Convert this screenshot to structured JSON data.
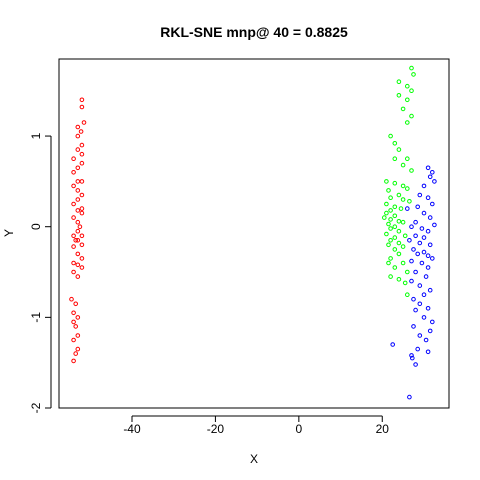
{
  "chart_data": {
    "type": "scatter",
    "title": "RKL-SNE mnp@ 40 = 0.8825",
    "xlabel": "X",
    "ylabel": "Y",
    "xlim": [
      -57.5,
      36
    ],
    "ylim": [
      -2.0,
      1.85
    ],
    "x_ticks": [
      -40,
      -20,
      0,
      20
    ],
    "x_tick_labels": [
      "-40",
      "-20",
      "0",
      "20"
    ],
    "y_ticks": [
      -2,
      -1,
      0,
      1
    ],
    "y_tick_labels": [
      "-2",
      "-1",
      "0",
      "1"
    ],
    "grid": false,
    "legend": "none",
    "marker": "open-circle",
    "series": [
      {
        "color": "#ff0000",
        "points": [
          [
            -52.0,
            1.4
          ],
          [
            -52.0,
            1.32
          ],
          [
            -51.5,
            1.15
          ],
          [
            -52.2,
            1.05
          ],
          [
            -53.0,
            1.1
          ],
          [
            -53.0,
            1.0
          ],
          [
            -52.0,
            0.9
          ],
          [
            -53.0,
            0.85
          ],
          [
            -52.0,
            0.8
          ],
          [
            -54.0,
            0.75
          ],
          [
            -52.0,
            0.7
          ],
          [
            -53.0,
            0.65
          ],
          [
            -54.0,
            0.6
          ],
          [
            -52.0,
            0.5
          ],
          [
            -53.0,
            0.5
          ],
          [
            -54.0,
            0.45
          ],
          [
            -53.0,
            0.4
          ],
          [
            -52.0,
            0.35
          ],
          [
            -53.0,
            0.3
          ],
          [
            -54.0,
            0.25
          ],
          [
            -52.0,
            0.2
          ],
          [
            -53.0,
            0.18
          ],
          [
            -52.0,
            0.15
          ],
          [
            -54.0,
            0.1
          ],
          [
            -53.0,
            0.05
          ],
          [
            -52.5,
            0.0
          ],
          [
            -53.0,
            -0.05
          ],
          [
            -54.0,
            -0.1
          ],
          [
            -52.0,
            -0.1
          ],
          [
            -53.5,
            -0.15
          ],
          [
            -53.0,
            -0.15
          ],
          [
            -52.0,
            -0.2
          ],
          [
            -54.0,
            -0.22
          ],
          [
            -53.0,
            -0.3
          ],
          [
            -52.0,
            -0.35
          ],
          [
            -54.0,
            -0.4
          ],
          [
            -53.0,
            -0.42
          ],
          [
            -52.0,
            -0.45
          ],
          [
            -54.0,
            -0.5
          ],
          [
            -53.0,
            -0.55
          ],
          [
            -54.5,
            -0.8
          ],
          [
            -53.5,
            -0.85
          ],
          [
            -54.0,
            -0.95
          ],
          [
            -53.0,
            -1.0
          ],
          [
            -54.0,
            -1.05
          ],
          [
            -53.5,
            -1.1
          ],
          [
            -53.0,
            -1.2
          ],
          [
            -54.0,
            -1.25
          ],
          [
            -53.0,
            -1.35
          ],
          [
            -53.5,
            -1.4
          ],
          [
            -54.0,
            -1.48
          ]
        ]
      },
      {
        "color": "#00ff00",
        "points": [
          [
            27.0,
            1.75
          ],
          [
            27.5,
            1.68
          ],
          [
            24.0,
            1.6
          ],
          [
            26.0,
            1.55
          ],
          [
            27.0,
            1.5
          ],
          [
            24.0,
            1.45
          ],
          [
            26.0,
            1.4
          ],
          [
            25.0,
            1.3
          ],
          [
            27.0,
            1.22
          ],
          [
            26.0,
            1.15
          ],
          [
            22.0,
            1.0
          ],
          [
            23.0,
            0.92
          ],
          [
            24.0,
            0.85
          ],
          [
            23.0,
            0.75
          ],
          [
            26.0,
            0.75
          ],
          [
            25.0,
            0.68
          ],
          [
            27.0,
            0.62
          ],
          [
            21.0,
            0.5
          ],
          [
            23.0,
            0.48
          ],
          [
            25.0,
            0.45
          ],
          [
            26.0,
            0.42
          ],
          [
            21.5,
            0.4
          ],
          [
            24.0,
            0.35
          ],
          [
            22.0,
            0.32
          ],
          [
            25.0,
            0.3
          ],
          [
            26.5,
            0.28
          ],
          [
            21.0,
            0.25
          ],
          [
            23.0,
            0.22
          ],
          [
            24.5,
            0.2
          ],
          [
            22.0,
            0.18
          ],
          [
            21.0,
            0.15
          ],
          [
            23.0,
            0.12
          ],
          [
            20.5,
            0.1
          ],
          [
            22.0,
            0.08
          ],
          [
            24.0,
            0.06
          ],
          [
            25.0,
            0.05
          ],
          [
            21.5,
            0.03
          ],
          [
            23.0,
            0.0
          ],
          [
            22.0,
            -0.02
          ],
          [
            24.0,
            -0.05
          ],
          [
            21.0,
            -0.08
          ],
          [
            25.5,
            -0.1
          ],
          [
            23.0,
            -0.12
          ],
          [
            22.0,
            -0.15
          ],
          [
            24.0,
            -0.18
          ],
          [
            21.5,
            -0.2
          ],
          [
            25.0,
            -0.22
          ],
          [
            23.0,
            -0.25
          ],
          [
            24.0,
            -0.3
          ],
          [
            22.0,
            -0.35
          ],
          [
            21.5,
            -0.4
          ],
          [
            25.0,
            -0.4
          ],
          [
            23.0,
            -0.45
          ],
          [
            26.0,
            -0.5
          ],
          [
            22.0,
            -0.55
          ],
          [
            24.0,
            -0.58
          ],
          [
            25.5,
            -0.62
          ],
          [
            26.0,
            -0.75
          ]
        ]
      },
      {
        "color": "#0000ff",
        "points": [
          [
            31.0,
            0.65
          ],
          [
            32.0,
            0.6
          ],
          [
            31.5,
            0.55
          ],
          [
            32.5,
            0.5
          ],
          [
            30.0,
            0.45
          ],
          [
            29.0,
            0.35
          ],
          [
            31.0,
            0.32
          ],
          [
            32.0,
            0.25
          ],
          [
            28.5,
            0.22
          ],
          [
            26.0,
            0.2
          ],
          [
            30.0,
            0.15
          ],
          [
            31.5,
            0.1
          ],
          [
            28.0,
            0.05
          ],
          [
            32.5,
            0.02
          ],
          [
            27.0,
            0.0
          ],
          [
            29.5,
            -0.02
          ],
          [
            31.0,
            -0.05
          ],
          [
            28.0,
            -0.1
          ],
          [
            30.0,
            -0.12
          ],
          [
            26.5,
            -0.15
          ],
          [
            29.0,
            -0.18
          ],
          [
            31.5,
            -0.2
          ],
          [
            27.5,
            -0.25
          ],
          [
            30.0,
            -0.28
          ],
          [
            28.5,
            -0.3
          ],
          [
            31.0,
            -0.32
          ],
          [
            32.0,
            -0.35
          ],
          [
            27.0,
            -0.38
          ],
          [
            29.5,
            -0.4
          ],
          [
            31.0,
            -0.45
          ],
          [
            28.0,
            -0.5
          ],
          [
            30.5,
            -0.55
          ],
          [
            27.0,
            -0.6
          ],
          [
            29.0,
            -0.65
          ],
          [
            31.5,
            -0.7
          ],
          [
            30.0,
            -0.75
          ],
          [
            27.5,
            -0.8
          ],
          [
            29.0,
            -0.85
          ],
          [
            31.0,
            -0.9
          ],
          [
            28.0,
            -0.92
          ],
          [
            30.0,
            -1.0
          ],
          [
            32.0,
            -1.05
          ],
          [
            27.5,
            -1.1
          ],
          [
            31.5,
            -1.15
          ],
          [
            29.0,
            -1.2
          ],
          [
            30.5,
            -1.25
          ],
          [
            22.5,
            -1.3
          ],
          [
            28.5,
            -1.35
          ],
          [
            31.0,
            -1.38
          ],
          [
            27.0,
            -1.42
          ],
          [
            27.2,
            -1.45
          ],
          [
            28.0,
            -1.52
          ],
          [
            26.5,
            -1.88
          ]
        ]
      }
    ]
  }
}
